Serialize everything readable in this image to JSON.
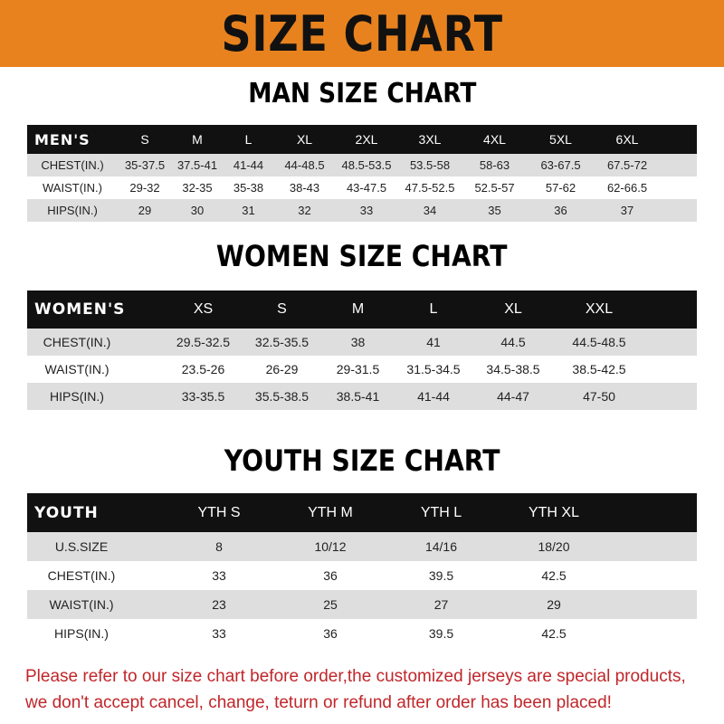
{
  "banner_title": "SIZE CHART",
  "colors": {
    "banner": "#e8821e",
    "header_row": "#111111",
    "stripe": "#dedede",
    "notice": "#c0262a"
  },
  "men": {
    "title": "MAN SIZE CHART",
    "header": [
      "MEN'S",
      "S",
      "M",
      "L",
      "XL",
      "2XL",
      "3XL",
      "4XL",
      "5XL",
      "6XL"
    ],
    "rows": [
      [
        "CHEST(IN.)",
        "35-37.5",
        "37.5-41",
        "41-44",
        "44-48.5",
        "48.5-53.5",
        "53.5-58",
        "58-63",
        "63-67.5",
        "67.5-72"
      ],
      [
        "WAIST(IN.)",
        "29-32",
        "32-35",
        "35-38",
        "38-43",
        "43-47.5",
        "47.5-52.5",
        "52.5-57",
        "57-62",
        "62-66.5"
      ],
      [
        "HIPS(IN.)",
        "29",
        "30",
        "31",
        "32",
        "33",
        "34",
        "35",
        "36",
        "37"
      ]
    ]
  },
  "women": {
    "title": "WOMEN SIZE CHART",
    "header": [
      "WOMEN'S",
      "XS",
      "S",
      "M",
      "L",
      "XL",
      "XXL"
    ],
    "rows": [
      [
        "CHEST(IN.)",
        "29.5-32.5",
        "32.5-35.5",
        "38",
        "41",
        "44.5",
        "44.5-48.5"
      ],
      [
        "WAIST(IN.)",
        "23.5-26",
        "26-29",
        "29-31.5",
        "31.5-34.5",
        "34.5-38.5",
        "38.5-42.5"
      ],
      [
        "HIPS(IN.)",
        "33-35.5",
        "35.5-38.5",
        "38.5-41",
        "41-44",
        "44-47",
        "47-50"
      ]
    ]
  },
  "youth": {
    "title": "YOUTH SIZE CHART",
    "header": [
      "YOUTH",
      "YTH S",
      "YTH M",
      "YTH L",
      "YTH XL"
    ],
    "rows": [
      [
        "U.S.SIZE",
        "8",
        "10/12",
        "14/16",
        "18/20"
      ],
      [
        "CHEST(IN.)",
        "33",
        "36",
        "39.5",
        "42.5"
      ],
      [
        "WAIST(IN.)",
        "23",
        "25",
        "27",
        "29"
      ],
      [
        "HIPS(IN.)",
        "33",
        "36",
        "39.5",
        "42.5"
      ]
    ]
  },
  "notice": {
    "line1": "Please refer to our size chart before order,the customized jerseys are special products,",
    "line2": "we don't accept cancel, change, teturn or refund after order has been placed!"
  }
}
